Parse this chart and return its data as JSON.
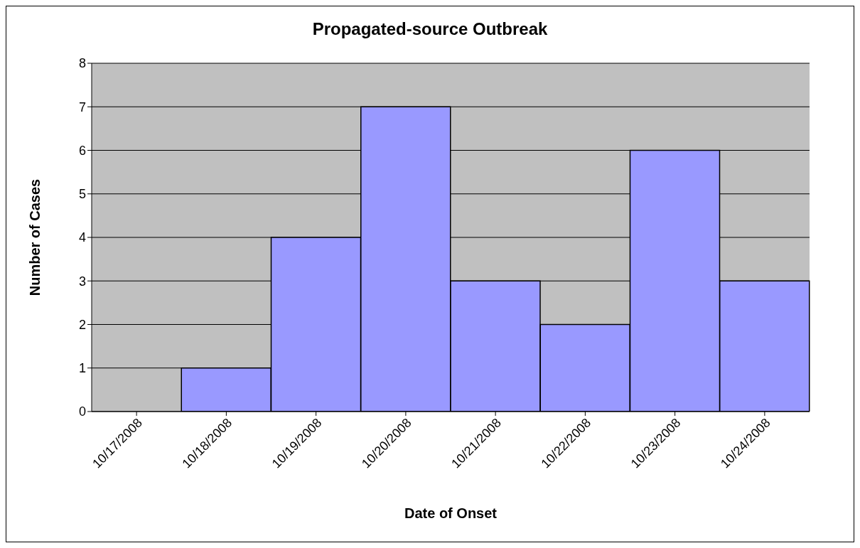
{
  "chart_data": {
    "type": "bar",
    "title": "Propagated-source Outbreak",
    "xlabel": "Date of Onset",
    "ylabel": "Number of Cases",
    "categories": [
      "10/17/2008",
      "10/18/2008",
      "10/19/2008",
      "10/20/2008",
      "10/21/2008",
      "10/22/2008",
      "10/23/2008",
      "10/24/2008"
    ],
    "values": [
      0,
      1,
      4,
      7,
      3,
      2,
      6,
      3
    ],
    "color": "#9999ff",
    "ylim": [
      0,
      8
    ],
    "yticks": [
      0,
      1,
      2,
      3,
      4,
      5,
      6,
      7,
      8
    ],
    "grid": "y"
  }
}
